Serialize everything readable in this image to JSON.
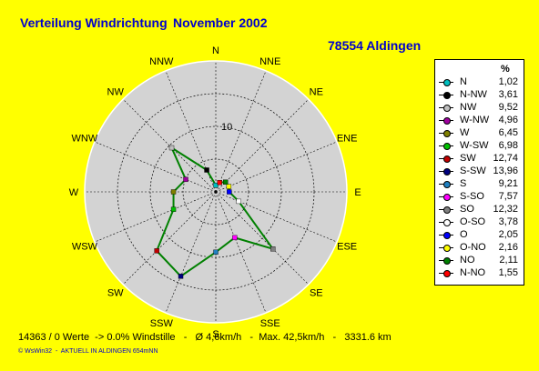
{
  "header": {
    "title": "Verteilung Windrichtung",
    "month": "November 2002",
    "station": "78554 Aldingen"
  },
  "chart_data": {
    "type": "radar",
    "title": "Verteilung Windrichtung   November 2002",
    "rmax": 20,
    "ring_label": "10",
    "directions": [
      "N",
      "NNE",
      "NE",
      "ENE",
      "E",
      "ESE",
      "SE",
      "SSE",
      "S",
      "SSW",
      "SW",
      "WSW",
      "W",
      "WNW",
      "NW",
      "NNW"
    ],
    "series": [
      {
        "name": "N",
        "value": 1.02,
        "color": "#00c0c0"
      },
      {
        "name": "N-NW",
        "value": 3.61,
        "color": "#000000"
      },
      {
        "name": "NW",
        "value": 9.52,
        "color": "#c0c0c0"
      },
      {
        "name": "W-NW",
        "value": 4.96,
        "color": "#a000a0"
      },
      {
        "name": "W",
        "value": 6.45,
        "color": "#808000"
      },
      {
        "name": "W-SW",
        "value": 6.98,
        "color": "#00c000"
      },
      {
        "name": "SW",
        "value": 12.74,
        "color": "#c00000"
      },
      {
        "name": "S-SW",
        "value": 13.96,
        "color": "#000080"
      },
      {
        "name": "S",
        "value": 9.21,
        "color": "#2080c0"
      },
      {
        "name": "S-SO",
        "value": 7.57,
        "color": "#ff00ff"
      },
      {
        "name": "SO",
        "value": 12.32,
        "color": "#808080"
      },
      {
        "name": "O-SO",
        "value": 3.78,
        "color": "#ffffff"
      },
      {
        "name": "O",
        "value": 2.05,
        "color": "#0000ff"
      },
      {
        "name": "O-NO",
        "value": 2.16,
        "color": "#ffff00"
      },
      {
        "name": "NO",
        "value": 2.11,
        "color": "#008000"
      },
      {
        "name": "N-NO",
        "value": 1.55,
        "color": "#ff0000"
      }
    ],
    "legend_header": "%"
  },
  "footer": {
    "stats": "14363 / 0 Werte  -> 0.0% Windstille   -   Ø 4,6km/h   -  Max. 42,5km/h   -   3331.6 km",
    "credit": "© WsWin32  -  AKTUELL IN ALDINGEN 654mNN"
  }
}
